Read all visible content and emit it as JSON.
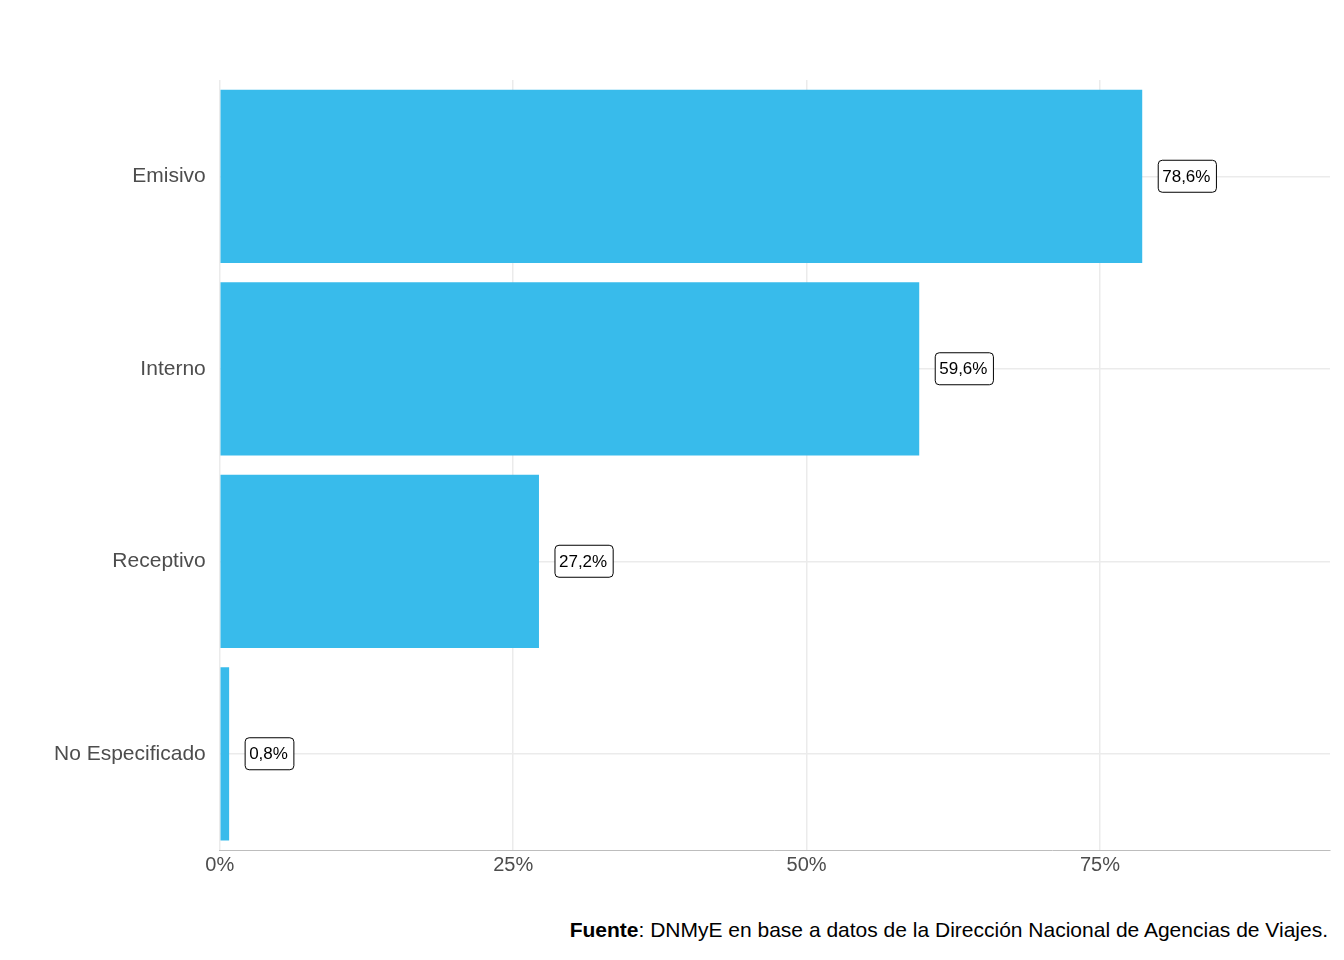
{
  "chart_data": {
    "type": "bar",
    "orientation": "horizontal",
    "categories": [
      "Emisivo",
      "Interno",
      "Receptivo",
      "No Especificado"
    ],
    "values": [
      78.6,
      59.6,
      27.2,
      0.8
    ],
    "value_labels": [
      "78,6%",
      "59,6%",
      "27,2%",
      "0,8%"
    ],
    "color": "#38bbeb",
    "xlim": [
      0,
      94.6
    ],
    "xticks": [
      {
        "value": 0,
        "label": "0%"
      },
      {
        "value": 25,
        "label": "25%"
      },
      {
        "value": 50,
        "label": "50%"
      },
      {
        "value": 75,
        "label": "75%"
      }
    ],
    "grid": true,
    "data_labels": true,
    "annotations": [
      {
        "bold": "Fuente",
        "text": ": DNMyE en base a datos de la Dirección Nacional de Agencias de Viajes."
      }
    ]
  }
}
